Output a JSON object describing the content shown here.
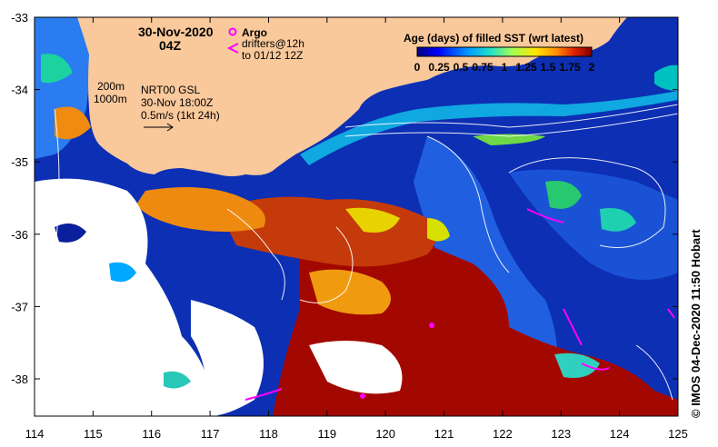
{
  "map": {
    "date_line1": "30-Nov-2020",
    "date_line2": "04Z",
    "argo_label": "Argo",
    "drifters_line1": "drifters@12h",
    "drifters_line2": "to 01/12 12Z",
    "isobath_200": "200m",
    "isobath_1000": "1000m",
    "gsl_line1": "NRT00 GSL",
    "gsl_line2": "30-Nov 18:00Z",
    "gsl_line3": "0.5m/s (1kt 24h)",
    "colorbar_title": "Age (days) of filled SST (wrt latest)",
    "colorbar_ticks": [
      "0",
      "0.25",
      "0.5",
      "0.75",
      "1",
      "1.25",
      "1.5",
      "1.75",
      "2"
    ],
    "credit": "©  IMOS 04-Dec-2020 11:50 Hobart",
    "lon_ticks": [
      "114",
      "115",
      "116",
      "117",
      "118",
      "119",
      "120",
      "121",
      "122",
      "123",
      "124",
      "125"
    ],
    "lat_ticks": [
      "-33",
      "-34",
      "-35",
      "-36",
      "-37",
      "-38"
    ]
  },
  "colors": {
    "land": "#f9c89b",
    "magenta": "#ff00ff",
    "frame": "#000000"
  }
}
